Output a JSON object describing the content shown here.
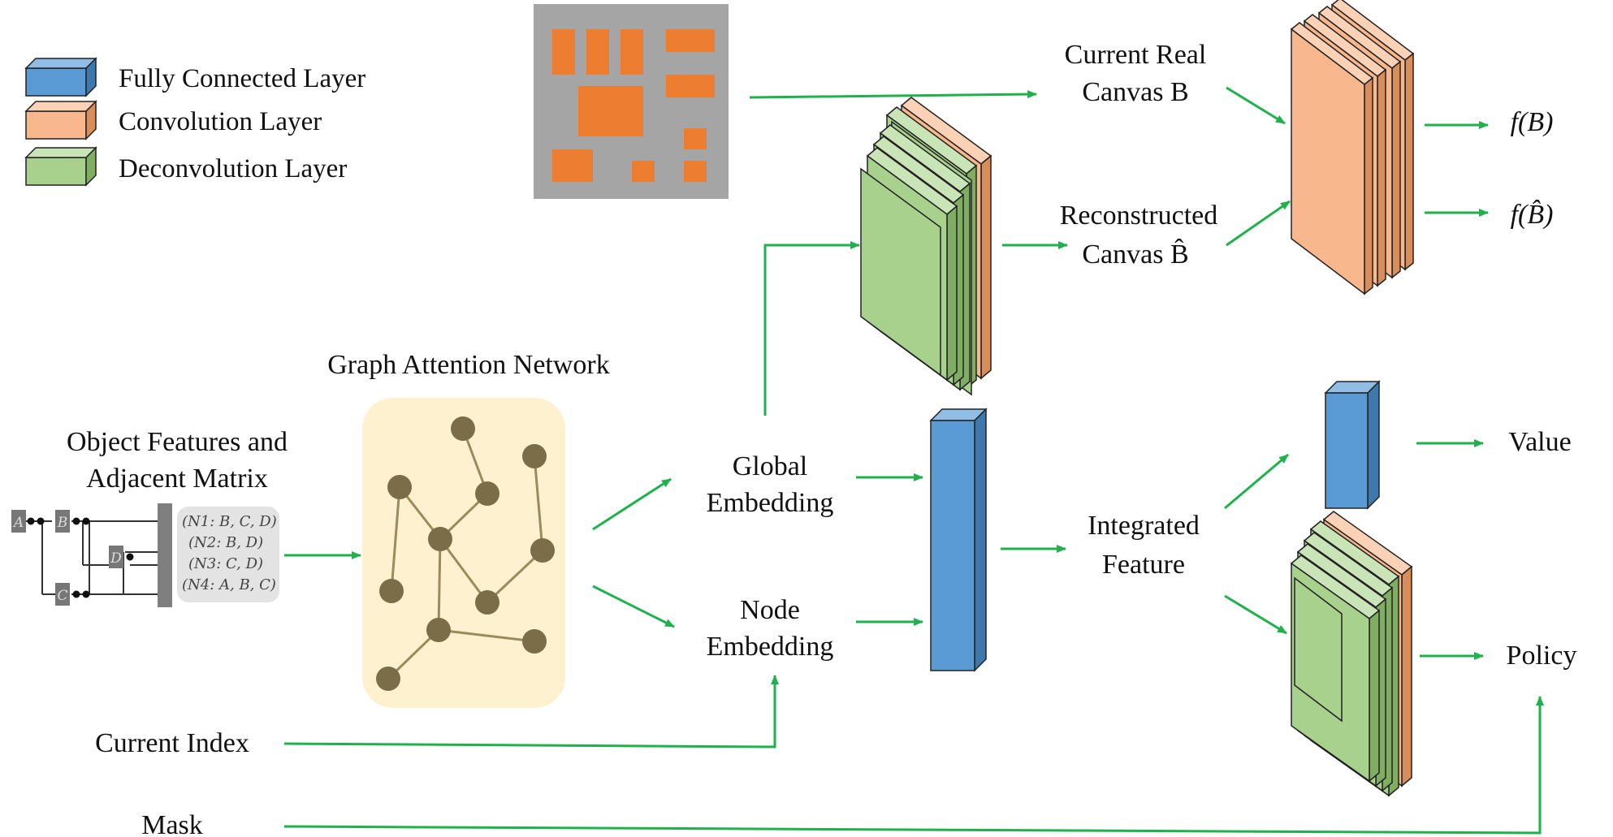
{
  "legend": {
    "fc": "Fully Connected Layer",
    "conv": "Convolution Layer",
    "deconv": "Deconvolution Layer"
  },
  "colors": {
    "fc": "#5b9bd5",
    "conv": "#f8b78c",
    "deconv": "#a9d18e",
    "arrow": "#1fb14c",
    "gat_bg": "#fdf1cf",
    "gat_node": "#7b6d47",
    "canvas_bg": "#a5a5a5",
    "canvas_box": "#ed7d31"
  },
  "inputs": {
    "object_features_line1": "Object Features and",
    "object_features_line2": "Adjacent Matrix",
    "current_index": "Current Index",
    "mask": "Mask"
  },
  "matrix": {
    "nodes": [
      "A",
      "B",
      "C",
      "D"
    ],
    "rows": [
      "(N1: B, C, D)",
      "(N2: B, D)",
      "(N3: C, D)",
      "(N4: A, B, C)"
    ]
  },
  "gat": {
    "title": "Graph Attention Network"
  },
  "embeddings": {
    "global_line1": "Global",
    "global_line2": "Embedding",
    "node_line1": "Node",
    "node_line2": "Embedding"
  },
  "canvas": {
    "real_line1": "Current Real",
    "real_line2": "Canvas B",
    "recon_line1": "Reconstructed",
    "recon_line2": "Canvas B̂"
  },
  "outputs": {
    "f_real": "f(B)",
    "f_recon": "f(B̂)",
    "value": "Value",
    "policy": "Policy"
  },
  "integrated": {
    "line1": "Integrated",
    "line2": "Feature"
  }
}
